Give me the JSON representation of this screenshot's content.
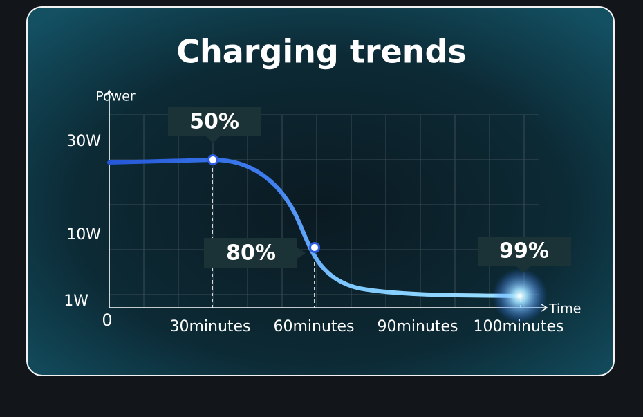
{
  "title": "Charging trends",
  "axes": {
    "y_label": "Power",
    "x_label": "Time",
    "origin": "0",
    "y_tick_labels": [
      "30W",
      "10W",
      "1W"
    ],
    "x_tick_labels": [
      "30minutes",
      "60minutes",
      "90minutes",
      "100minutes"
    ]
  },
  "callouts": [
    "50%",
    "80%",
    "99%"
  ]
}
